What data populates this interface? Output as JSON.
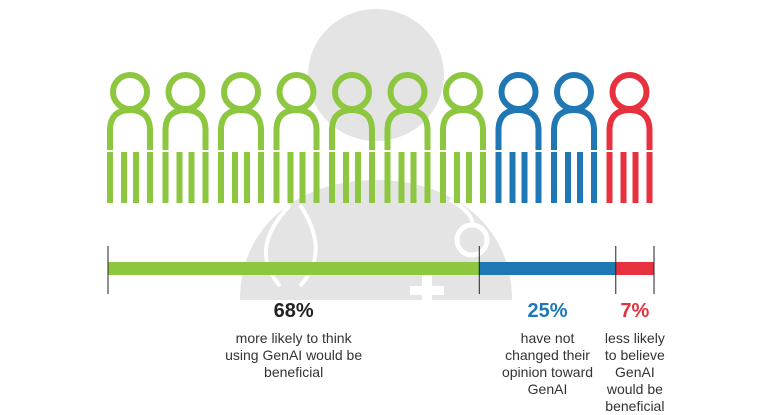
{
  "colors": {
    "green": "#8dc63f",
    "blue": "#1f78b4",
    "red": "#e8313f",
    "background_figure": "#e4e4e4",
    "axis": "#222222"
  },
  "background_icon": "doctor-with-stethoscope-icon",
  "figure_icon": "person-outline-icon",
  "chart_data": {
    "type": "bar",
    "orientation": "horizontal-stacked",
    "unit": "%",
    "total_people_icons": 10,
    "segments": [
      {
        "key": "more_likely",
        "value": 68,
        "label": "68%",
        "description": "more likely to think using GenAI would be beneficial",
        "icon_count": 7,
        "color": "#8dc63f"
      },
      {
        "key": "no_change",
        "value": 25,
        "label": "25%",
        "description": "have not changed their opinion toward GenAI",
        "icon_count": 2,
        "color": "#1f78b4"
      },
      {
        "key": "less_likely",
        "value": 7,
        "label": "7%",
        "description": "less likely to believe GenAI would be beneficial",
        "icon_count": 1,
        "color": "#e8313f"
      }
    ]
  }
}
